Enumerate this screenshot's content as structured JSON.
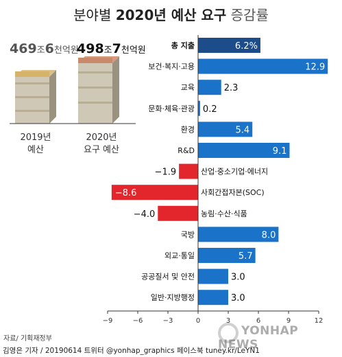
{
  "title": {
    "part1": "분야별",
    "part2": "2020년 예산 요구",
    "part3": "증감률"
  },
  "budget_2019": {
    "num_a": "469",
    "unit_a": "조",
    "num_b": "6",
    "unit_b": "천억원",
    "label_line1": "2019년",
    "label_line2": "예산"
  },
  "budget_2020": {
    "num_a": "498",
    "unit_a": "조",
    "num_b": "7",
    "unit_b": "천억원",
    "label_line1": "2020년",
    "label_line2": "요구 예산"
  },
  "source": "자료/ 기획재정부",
  "credit": "김영은 기자 / 20190614 트위터 @yonhap_graphics 페이스북 tuney.kr/LeYN1",
  "watermark": "YONHAP NEWS",
  "colors": {
    "total": "#1d4c8a",
    "positive": "#1a73c8",
    "negative": "#e3262b"
  },
  "chart_data": {
    "type": "bar",
    "orientation": "horizontal",
    "categories": [
      "총 지출",
      "보건·복지·고용",
      "교육",
      "문화·체육·관광",
      "환경",
      "R&D",
      "산업·중소기업·에너지",
      "사회간접자본(SOC)",
      "농림·수산·식품",
      "국방",
      "외교·통일",
      "공공질서 및 안전",
      "일반·지방행정"
    ],
    "values": [
      6.2,
      12.9,
      2.3,
      0.2,
      5.4,
      9.1,
      -1.9,
      -8.6,
      -4.0,
      8.0,
      5.7,
      3.0,
      3.0
    ],
    "value_labels": [
      "6.2%",
      "12.9",
      "2.3",
      "0.2",
      "5.4",
      "9.1",
      "−1.9",
      "−8.6",
      "−4.0",
      "8.0",
      "5.7",
      "3.0",
      "3.0"
    ],
    "xticks": [
      -9,
      -6,
      -3,
      0,
      3,
      6,
      9,
      12
    ],
    "xtick_labels": [
      "−9",
      "−6",
      "−3",
      "0",
      "3",
      "6",
      "9",
      "12"
    ],
    "xlim": [
      -9,
      12
    ]
  }
}
